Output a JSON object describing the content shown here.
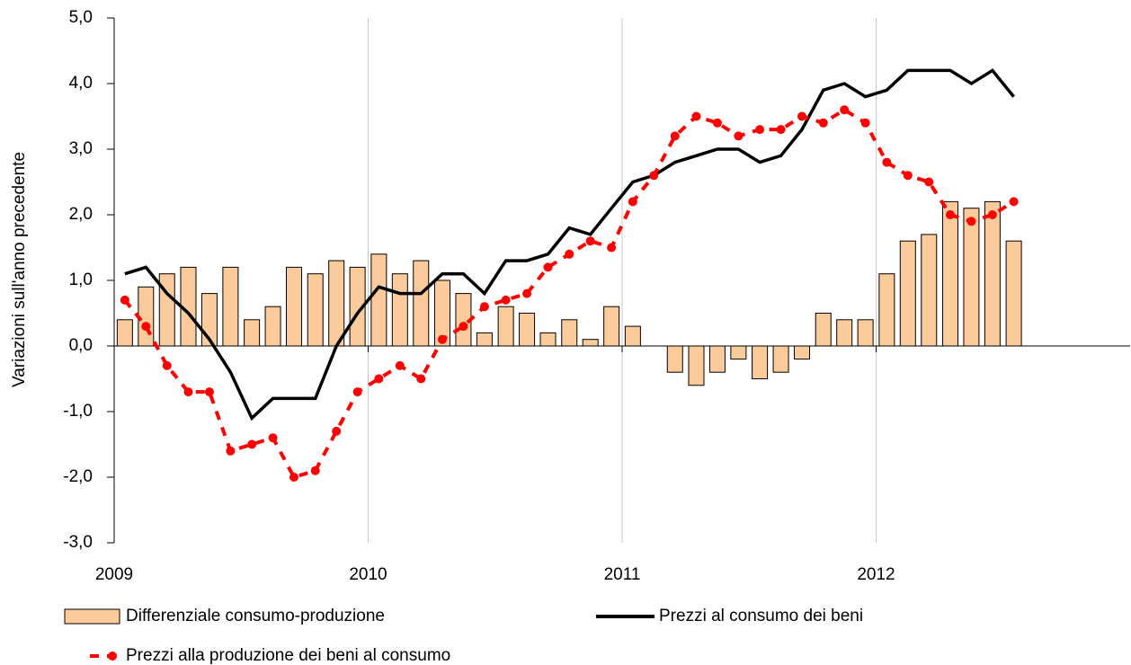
{
  "chart_data": {
    "type": "combo",
    "ylabel": "Variazioni sull'anno precedente",
    "xlim": [
      2009,
      2013
    ],
    "xticks": [
      2009,
      2010,
      2011,
      2012
    ],
    "ylim": [
      -3,
      5
    ],
    "yticks": [
      {
        "value": -3,
        "label": "-3,0"
      },
      {
        "value": -2,
        "label": "-2,0"
      },
      {
        "value": -1,
        "label": "-1,0"
      },
      {
        "value": 0,
        "label": "0,0"
      },
      {
        "value": 1,
        "label": "1,0"
      },
      {
        "value": 2,
        "label": "2,0"
      },
      {
        "value": 3,
        "label": "3,0"
      },
      {
        "value": 4,
        "label": "4,0"
      },
      {
        "value": 5,
        "label": "5,0"
      }
    ],
    "grid": "x",
    "x": [
      2009.042,
      2009.125,
      2009.208,
      2009.292,
      2009.375,
      2009.458,
      2009.542,
      2009.625,
      2009.708,
      2009.792,
      2009.875,
      2009.958,
      2010.042,
      2010.125,
      2010.208,
      2010.292,
      2010.375,
      2010.458,
      2010.542,
      2010.625,
      2010.708,
      2010.792,
      2010.875,
      2010.958,
      2011.042,
      2011.125,
      2011.208,
      2011.292,
      2011.375,
      2011.458,
      2011.542,
      2011.625,
      2011.708,
      2011.792,
      2011.875,
      2011.958,
      2012.042,
      2012.125,
      2012.208,
      2012.292,
      2012.375,
      2012.458,
      2012.542
    ],
    "series": [
      {
        "name": "Differenziale consumo-produzione",
        "type": "bar",
        "color": "#fbcb9c",
        "values": [
          0.4,
          0.9,
          1.1,
          1.2,
          0.8,
          1.2,
          0.4,
          0.6,
          1.2,
          1.1,
          1.3,
          1.2,
          1.4,
          1.1,
          1.3,
          1.0,
          0.8,
          0.2,
          0.6,
          0.5,
          0.2,
          0.4,
          0.1,
          0.6,
          0.3,
          0.0,
          -0.4,
          -0.6,
          -0.4,
          -0.2,
          -0.5,
          -0.4,
          -0.2,
          0.5,
          0.4,
          0.4,
          1.1,
          1.6,
          1.7,
          2.2,
          2.1,
          2.2,
          1.6
        ]
      },
      {
        "name": "Prezzi al consumo dei beni",
        "type": "line",
        "color": "#000000",
        "linestyle": "solid",
        "values": [
          1.1,
          1.2,
          0.8,
          0.5,
          0.1,
          -0.4,
          -1.1,
          -0.8,
          -0.8,
          -0.8,
          0.0,
          0.5,
          0.9,
          0.8,
          0.8,
          1.1,
          1.1,
          0.8,
          1.3,
          1.3,
          1.4,
          1.8,
          1.7,
          2.1,
          2.5,
          2.6,
          2.8,
          2.9,
          3.0,
          3.0,
          2.8,
          2.9,
          3.3,
          3.9,
          4.0,
          3.8,
          3.9,
          4.2,
          4.2,
          4.2,
          4.0,
          4.2,
          3.8
        ]
      },
      {
        "name": "Prezzi alla produzione dei beni al consumo",
        "type": "line",
        "color": "#ff0000",
        "linestyle": "dashed",
        "marker": "circle",
        "values": [
          0.7,
          0.3,
          -0.3,
          -0.7,
          -0.7,
          -1.6,
          -1.5,
          -1.4,
          -2.0,
          -1.9,
          -1.3,
          -0.7,
          -0.5,
          -0.3,
          -0.5,
          0.1,
          0.3,
          0.6,
          0.7,
          0.8,
          1.2,
          1.4,
          1.6,
          1.5,
          2.2,
          2.6,
          3.2,
          3.5,
          3.4,
          3.2,
          3.3,
          3.3,
          3.5,
          3.4,
          3.6,
          3.4,
          2.8,
          2.6,
          2.5,
          2.0,
          1.9,
          2.0,
          2.2
        ]
      }
    ]
  }
}
